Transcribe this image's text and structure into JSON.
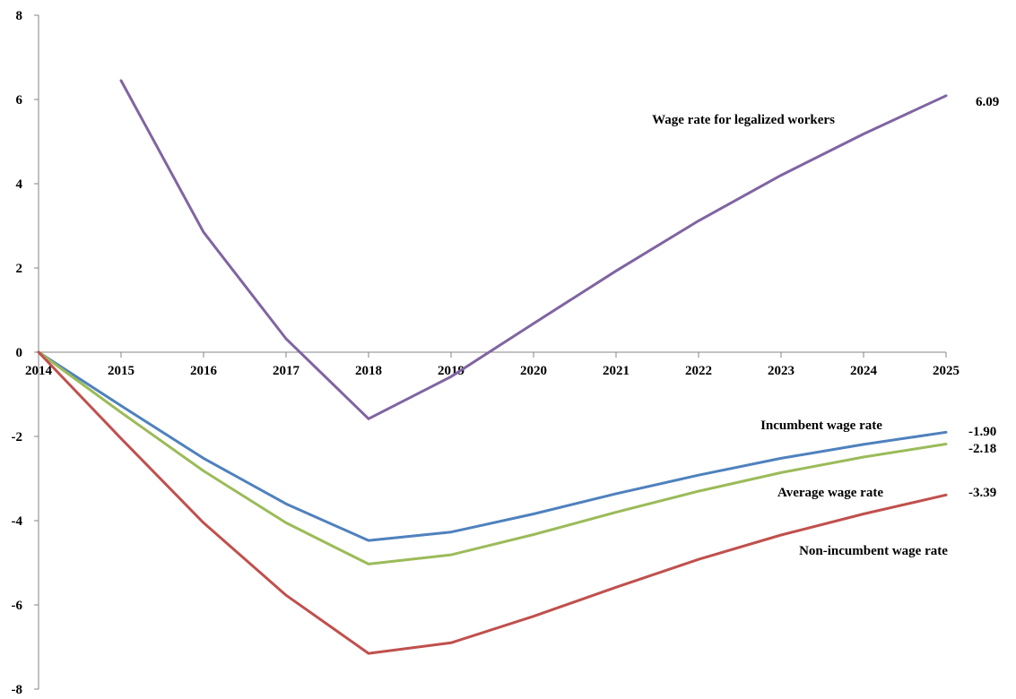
{
  "chart_data": {
    "type": "line",
    "title": "",
    "xlabel": "",
    "ylabel": "",
    "x": [
      2014,
      2015,
      2016,
      2017,
      2018,
      2019,
      2020,
      2021,
      2022,
      2023,
      2024,
      2025
    ],
    "x_tick_labels": [
      "2014",
      "2015",
      "2016",
      "2017",
      "2018",
      "2019",
      "2020",
      "2021",
      "2022",
      "2023",
      "2024",
      "2025"
    ],
    "ylim": [
      -8,
      8
    ],
    "y_ticks": [
      -8,
      -6,
      -4,
      -2,
      0,
      2,
      4,
      6,
      8
    ],
    "y_tick_labels": [
      "-8",
      "-6",
      "-4",
      "-2",
      "0",
      "2",
      "4",
      "6",
      "8"
    ],
    "grid": false,
    "legend": "none",
    "series": [
      {
        "name": "Wage rate for legalized workers",
        "color": "#8064a2",
        "x": [
          2015,
          2016,
          2017,
          2018,
          2019,
          2020,
          2021,
          2022,
          2023,
          2024,
          2025
        ],
        "values": [
          6.45,
          2.85,
          0.32,
          -1.58,
          -0.58,
          0.68,
          1.93,
          3.12,
          4.2,
          5.18,
          6.09
        ],
        "end_label": "6.09"
      },
      {
        "name": "Incumbent wage rate",
        "color": "#4f81bd",
        "x": [
          2014,
          2015,
          2016,
          2017,
          2018,
          2019,
          2020,
          2021,
          2022,
          2023,
          2024,
          2025
        ],
        "values": [
          0,
          -1.27,
          -2.52,
          -3.6,
          -4.47,
          -4.27,
          -3.84,
          -3.36,
          -2.92,
          -2.52,
          -2.19,
          -1.9
        ],
        "end_label": "-1.90"
      },
      {
        "name": "Average wage rate",
        "color": "#9bbb59",
        "x": [
          2014,
          2015,
          2016,
          2017,
          2018,
          2019,
          2020,
          2021,
          2022,
          2023,
          2024,
          2025
        ],
        "values": [
          0,
          -1.43,
          -2.82,
          -4.05,
          -5.03,
          -4.81,
          -4.33,
          -3.8,
          -3.3,
          -2.86,
          -2.49,
          -2.18
        ],
        "end_label": "-2.18"
      },
      {
        "name": "Non-incumbent wage rate",
        "color": "#c0504d",
        "x": [
          2014,
          2015,
          2016,
          2017,
          2018,
          2019,
          2020,
          2021,
          2022,
          2023,
          2024,
          2025
        ],
        "values": [
          0,
          -2.05,
          -4.05,
          -5.77,
          -7.15,
          -6.9,
          -6.27,
          -5.58,
          -4.92,
          -4.34,
          -3.84,
          -3.39
        ],
        "end_label": "-3.39"
      }
    ]
  }
}
